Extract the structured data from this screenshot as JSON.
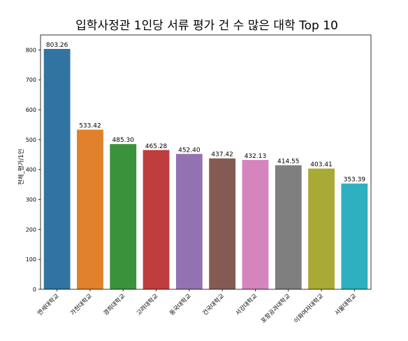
{
  "chart_data": {
    "type": "bar",
    "title": "입학사정관 1인당 서류 평가 건 수 많은 대학 Top 10",
    "xlabel": "",
    "ylabel": "전체_평가/1인",
    "ylim": [
      0,
      850
    ],
    "yticks": [
      0,
      100,
      200,
      300,
      400,
      500,
      600,
      700,
      800
    ],
    "grid": false,
    "categories": [
      "연세대학교",
      "가천대학교",
      "경희대학교",
      "고려대학교",
      "동국대학교",
      "건국대학교",
      "서강대학교",
      "포항공과대학교",
      "이화여자대학교",
      "서울대학교"
    ],
    "values": [
      803.26,
      533.42,
      485.3,
      465.28,
      452.4,
      437.42,
      432.13,
      414.55,
      403.41,
      353.39
    ],
    "value_labels": [
      "803.26",
      "533.42",
      "485.30",
      "465.28",
      "452.40",
      "437.42",
      "432.13",
      "414.55",
      "403.41",
      "353.39"
    ],
    "colors": [
      "#3274a1",
      "#e1812c",
      "#3a923a",
      "#c03d3e",
      "#9372b2",
      "#845b53",
      "#d684bd",
      "#7f7f7f",
      "#a9aa35",
      "#2eb0c0"
    ]
  }
}
